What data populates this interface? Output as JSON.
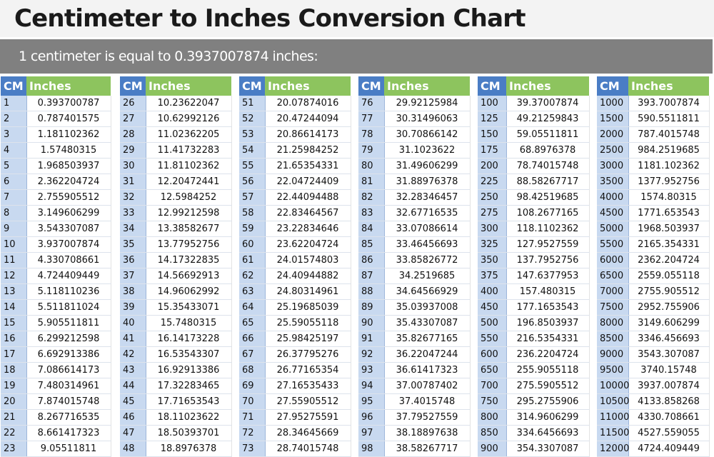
{
  "title": "Centimeter to Inches Conversion Chart",
  "subtitle": "1 centimeter is equal to 0.3937007874 inches:",
  "colors": {
    "cm_header": "#4a7dc5",
    "inches_header": "#8dc45e",
    "cm_cell": "#c8d9f0",
    "banner": "#808080"
  },
  "tables": [
    {
      "header_cm": "CM",
      "header_in": "Inches",
      "rows": [
        [
          "1",
          "0.393700787"
        ],
        [
          "2",
          "0.787401575"
        ],
        [
          "3",
          "1.181102362"
        ],
        [
          "4",
          "1.57480315"
        ],
        [
          "5",
          "1.968503937"
        ],
        [
          "6",
          "2.362204724"
        ],
        [
          "7",
          "2.755905512"
        ],
        [
          "8",
          "3.149606299"
        ],
        [
          "9",
          "3.543307087"
        ],
        [
          "10",
          "3.937007874"
        ],
        [
          "11",
          "4.330708661"
        ],
        [
          "12",
          "4.724409449"
        ],
        [
          "13",
          "5.118110236"
        ],
        [
          "14",
          "5.511811024"
        ],
        [
          "15",
          "5.905511811"
        ],
        [
          "16",
          "6.299212598"
        ],
        [
          "17",
          "6.692913386"
        ],
        [
          "18",
          "7.086614173"
        ],
        [
          "19",
          "7.480314961"
        ],
        [
          "20",
          "7.874015748"
        ],
        [
          "21",
          "8.267716535"
        ],
        [
          "22",
          "8.661417323"
        ],
        [
          "23",
          "9.05511811"
        ]
      ]
    },
    {
      "header_cm": "CM",
      "header_in": "Inches",
      "rows": [
        [
          "26",
          "10.23622047"
        ],
        [
          "27",
          "10.62992126"
        ],
        [
          "28",
          "11.02362205"
        ],
        [
          "29",
          "11.41732283"
        ],
        [
          "30",
          "11.81102362"
        ],
        [
          "31",
          "12.20472441"
        ],
        [
          "32",
          "12.5984252"
        ],
        [
          "33",
          "12.99212598"
        ],
        [
          "34",
          "13.38582677"
        ],
        [
          "35",
          "13.77952756"
        ],
        [
          "36",
          "14.17322835"
        ],
        [
          "37",
          "14.56692913"
        ],
        [
          "38",
          "14.96062992"
        ],
        [
          "39",
          "15.35433071"
        ],
        [
          "40",
          "15.7480315"
        ],
        [
          "41",
          "16.14173228"
        ],
        [
          "42",
          "16.53543307"
        ],
        [
          "43",
          "16.92913386"
        ],
        [
          "44",
          "17.32283465"
        ],
        [
          "45",
          "17.71653543"
        ],
        [
          "46",
          "18.11023622"
        ],
        [
          "47",
          "18.50393701"
        ],
        [
          "48",
          "18.8976378"
        ]
      ]
    },
    {
      "header_cm": "CM",
      "header_in": "Inches",
      "rows": [
        [
          "51",
          "20.07874016"
        ],
        [
          "52",
          "20.47244094"
        ],
        [
          "53",
          "20.86614173"
        ],
        [
          "54",
          "21.25984252"
        ],
        [
          "55",
          "21.65354331"
        ],
        [
          "56",
          "22.04724409"
        ],
        [
          "57",
          "22.44094488"
        ],
        [
          "58",
          "22.83464567"
        ],
        [
          "59",
          "23.22834646"
        ],
        [
          "60",
          "23.62204724"
        ],
        [
          "61",
          "24.01574803"
        ],
        [
          "62",
          "24.40944882"
        ],
        [
          "63",
          "24.80314961"
        ],
        [
          "64",
          "25.19685039"
        ],
        [
          "65",
          "25.59055118"
        ],
        [
          "66",
          "25.98425197"
        ],
        [
          "67",
          "26.37795276"
        ],
        [
          "68",
          "26.77165354"
        ],
        [
          "69",
          "27.16535433"
        ],
        [
          "70",
          "27.55905512"
        ],
        [
          "71",
          "27.95275591"
        ],
        [
          "72",
          "28.34645669"
        ],
        [
          "73",
          "28.74015748"
        ]
      ]
    },
    {
      "header_cm": "CM",
      "header_in": "Inches",
      "rows": [
        [
          "76",
          "29.92125984"
        ],
        [
          "77",
          "30.31496063"
        ],
        [
          "78",
          "30.70866142"
        ],
        [
          "79",
          "31.1023622"
        ],
        [
          "80",
          "31.49606299"
        ],
        [
          "81",
          "31.88976378"
        ],
        [
          "82",
          "32.28346457"
        ],
        [
          "83",
          "32.67716535"
        ],
        [
          "84",
          "33.07086614"
        ],
        [
          "85",
          "33.46456693"
        ],
        [
          "86",
          "33.85826772"
        ],
        [
          "87",
          "34.2519685"
        ],
        [
          "88",
          "34.64566929"
        ],
        [
          "89",
          "35.03937008"
        ],
        [
          "90",
          "35.43307087"
        ],
        [
          "91",
          "35.82677165"
        ],
        [
          "92",
          "36.22047244"
        ],
        [
          "93",
          "36.61417323"
        ],
        [
          "94",
          "37.00787402"
        ],
        [
          "95",
          "37.4015748"
        ],
        [
          "96",
          "37.79527559"
        ],
        [
          "97",
          "38.18897638"
        ],
        [
          "98",
          "38.58267717"
        ]
      ]
    },
    {
      "header_cm": "CM",
      "header_in": "Inches",
      "rows": [
        [
          "100",
          "39.37007874"
        ],
        [
          "125",
          "49.21259843"
        ],
        [
          "150",
          "59.05511811"
        ],
        [
          "175",
          "68.8976378"
        ],
        [
          "200",
          "78.74015748"
        ],
        [
          "225",
          "88.58267717"
        ],
        [
          "250",
          "98.42519685"
        ],
        [
          "275",
          "108.2677165"
        ],
        [
          "300",
          "118.1102362"
        ],
        [
          "325",
          "127.9527559"
        ],
        [
          "350",
          "137.7952756"
        ],
        [
          "375",
          "147.6377953"
        ],
        [
          "400",
          "157.480315"
        ],
        [
          "450",
          "177.1653543"
        ],
        [
          "500",
          "196.8503937"
        ],
        [
          "550",
          "216.5354331"
        ],
        [
          "600",
          "236.2204724"
        ],
        [
          "650",
          "255.9055118"
        ],
        [
          "700",
          "275.5905512"
        ],
        [
          "750",
          "295.2755906"
        ],
        [
          "800",
          "314.9606299"
        ],
        [
          "850",
          "334.6456693"
        ],
        [
          "900",
          "354.3307087"
        ]
      ]
    },
    {
      "header_cm": "CM",
      "header_in": "Inches",
      "rows": [
        [
          "1000",
          "393.7007874"
        ],
        [
          "1500",
          "590.5511811"
        ],
        [
          "2000",
          "787.4015748"
        ],
        [
          "2500",
          "984.2519685"
        ],
        [
          "3000",
          "1181.102362"
        ],
        [
          "3500",
          "1377.952756"
        ],
        [
          "4000",
          "1574.80315"
        ],
        [
          "4500",
          "1771.653543"
        ],
        [
          "5000",
          "1968.503937"
        ],
        [
          "5500",
          "2165.354331"
        ],
        [
          "6000",
          "2362.204724"
        ],
        [
          "6500",
          "2559.055118"
        ],
        [
          "7000",
          "2755.905512"
        ],
        [
          "7500",
          "2952.755906"
        ],
        [
          "8000",
          "3149.606299"
        ],
        [
          "8500",
          "3346.456693"
        ],
        [
          "9000",
          "3543.307087"
        ],
        [
          "9500",
          "3740.15748"
        ],
        [
          "10000",
          "3937.007874"
        ],
        [
          "10500",
          "4133.858268"
        ],
        [
          "11000",
          "4330.708661"
        ],
        [
          "11500",
          "4527.559055"
        ],
        [
          "12000",
          "4724.409449"
        ]
      ]
    }
  ]
}
